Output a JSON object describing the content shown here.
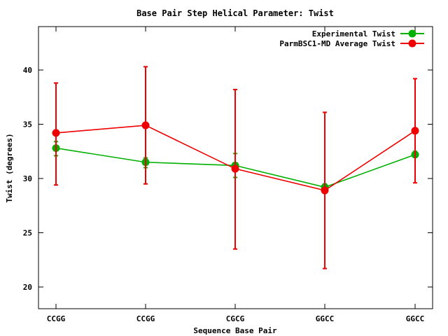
{
  "chart_data": {
    "type": "line",
    "title": "Base Pair Step Helical Parameter: Twist",
    "xlabel": "Sequence Base Pair",
    "ylabel": "Twist (degrees)",
    "categories": [
      "CCGG",
      "CCGG",
      "CGCG",
      "GGCC",
      "GGCC"
    ],
    "ylim": [
      18,
      44
    ],
    "yticks": [
      20,
      25,
      30,
      35,
      40
    ],
    "legend_position": "top-right",
    "grid": false,
    "series": [
      {
        "name": "Experimental Twist",
        "color": "#00b000",
        "values": [
          32.8,
          31.5,
          31.2,
          29.2,
          32.2
        ],
        "error_low": [
          32.1,
          31.0,
          30.1,
          28.9,
          32.0
        ],
        "error_high": [
          33.4,
          31.9,
          32.3,
          29.5,
          32.5
        ]
      },
      {
        "name": "ParmBSC1-MD Average Twist",
        "color": "#ee0000",
        "values": [
          34.2,
          34.9,
          30.9,
          28.9,
          34.4
        ],
        "error_low": [
          29.4,
          29.5,
          23.5,
          21.7,
          29.6
        ],
        "error_high": [
          38.8,
          40.3,
          38.2,
          36.1,
          39.2
        ]
      }
    ]
  }
}
